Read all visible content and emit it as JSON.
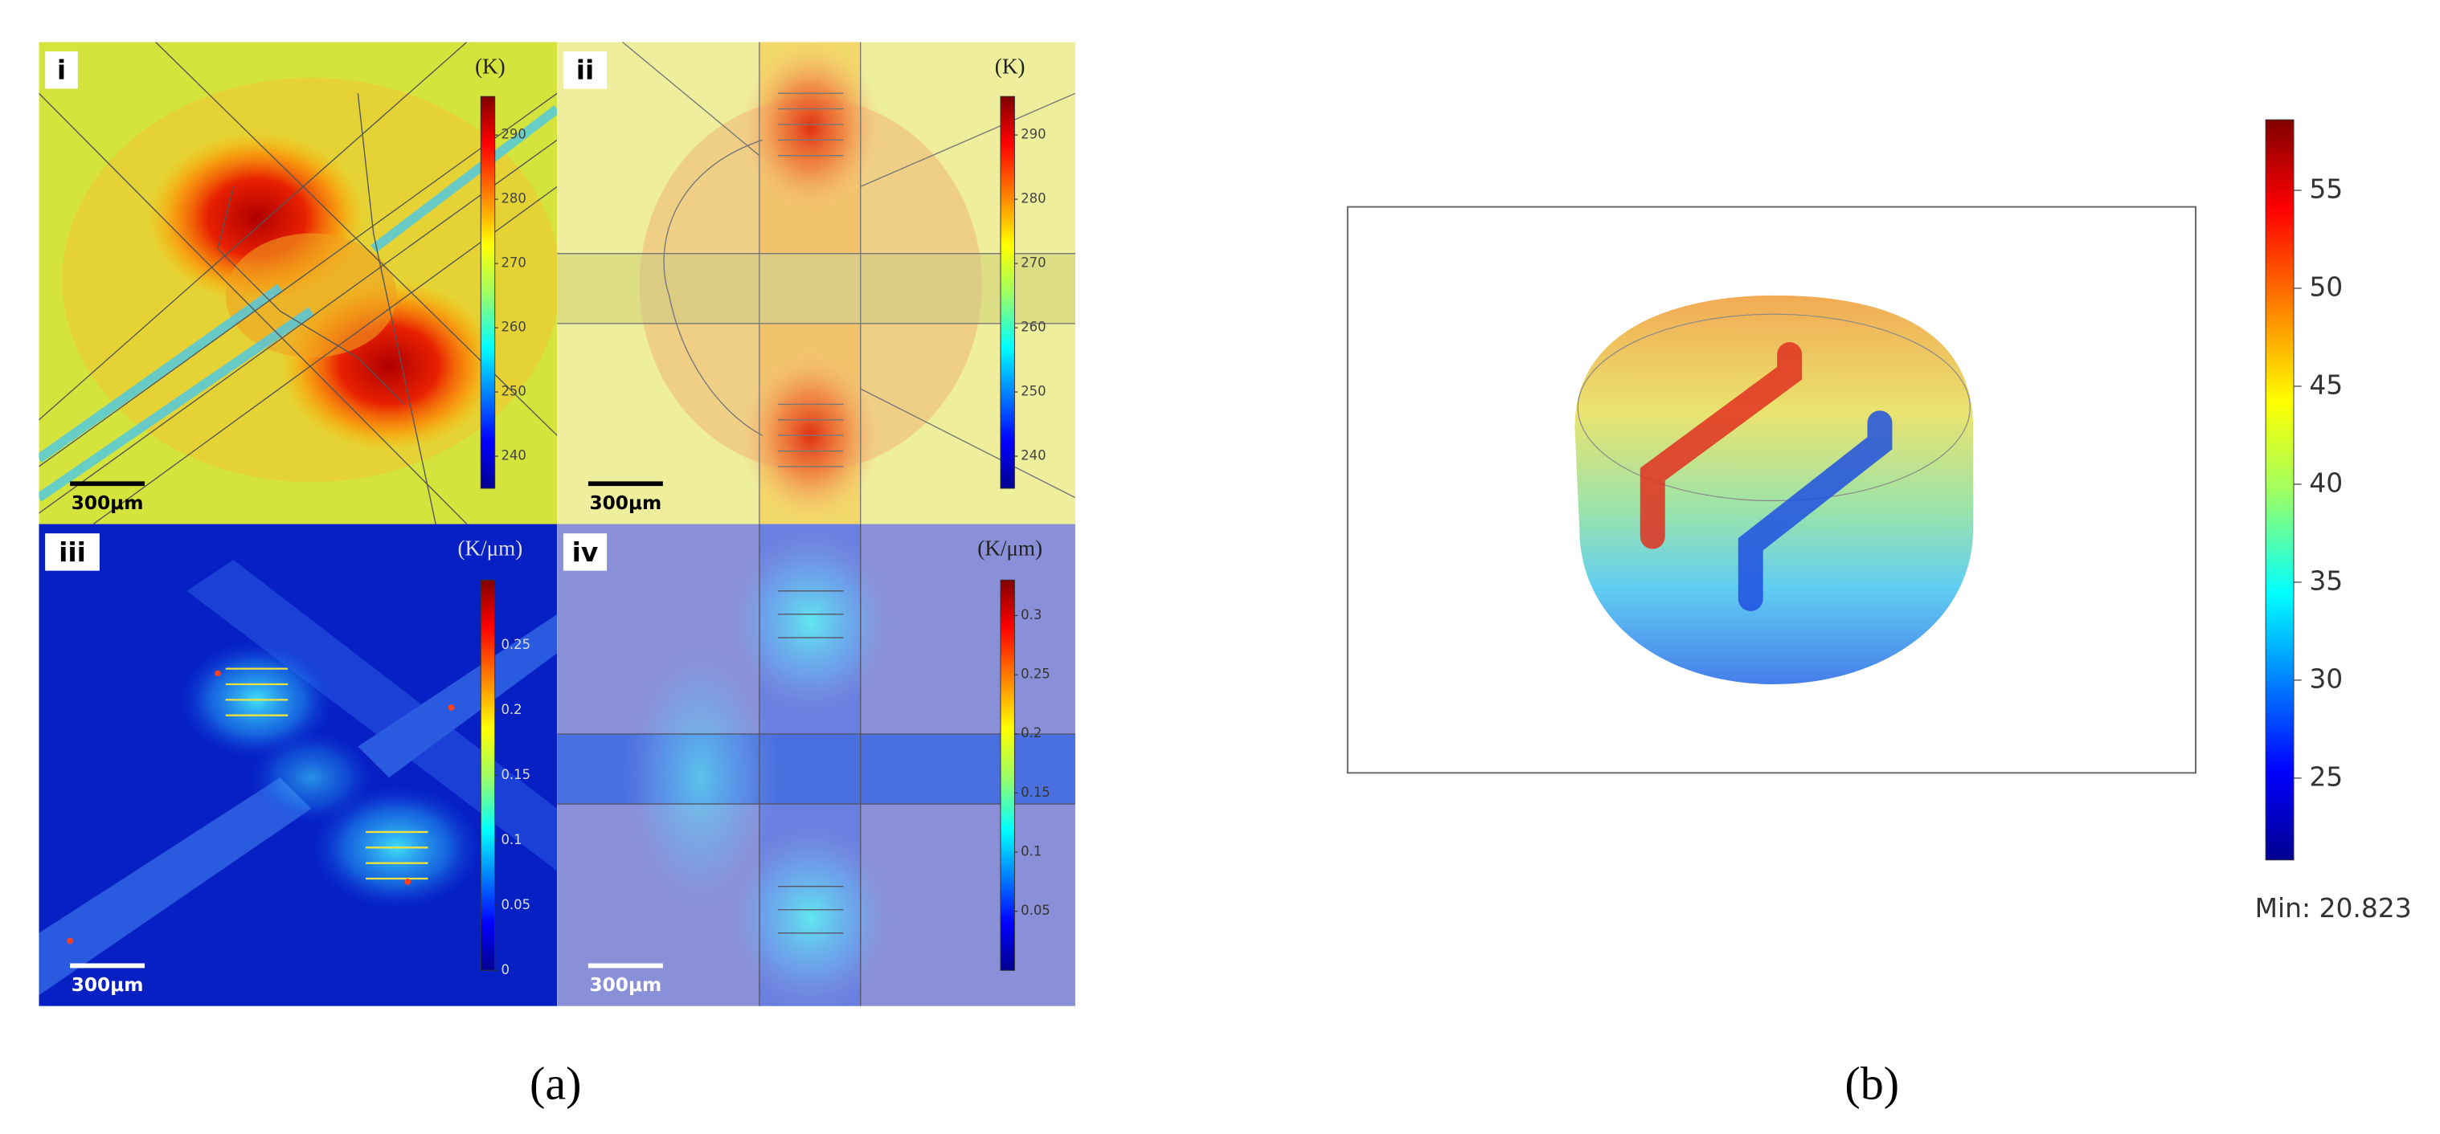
{
  "figure_a": {
    "label": "(a)",
    "panels": [
      {
        "label": "i",
        "unit": "(K)",
        "scale_bar": "300μm",
        "colorbar": {
          "range": [
            235,
            296
          ],
          "ticks": [
            240,
            250,
            260,
            270,
            280,
            290
          ]
        }
      },
      {
        "label": "ii",
        "unit": "(K)",
        "scale_bar": "300μm",
        "colorbar": {
          "range": [
            235,
            296
          ],
          "ticks": [
            240,
            250,
            260,
            270,
            280,
            290
          ]
        }
      },
      {
        "label": "iii",
        "unit": "(K/μm)",
        "scale_bar": "300μm",
        "colorbar": {
          "range": [
            0,
            0.3
          ],
          "ticks": [
            0,
            0.05,
            0.1,
            0.15,
            0.2,
            0.25
          ]
        }
      },
      {
        "label": "iv",
        "unit": "(K/μm)",
        "scale_bar": "300μm",
        "colorbar": {
          "range": [
            0,
            0.33
          ],
          "ticks": [
            0.05,
            0.1,
            0.15,
            0.2,
            0.25,
            0.3
          ]
        }
      }
    ]
  },
  "figure_b": {
    "label": "(b)",
    "colorbar": {
      "range": [
        20.823,
        58.6
      ],
      "ticks": [
        25,
        30,
        35,
        40,
        45,
        50,
        55
      ]
    },
    "min_label": "Min: 20.823"
  }
}
